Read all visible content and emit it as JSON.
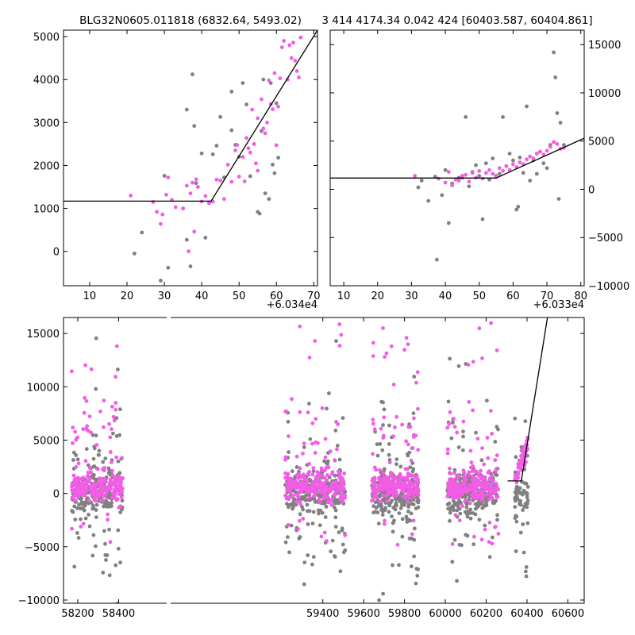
{
  "colors": {
    "pink": "#f25ce6",
    "gray": "#808080",
    "line": "#000000"
  },
  "chart_data": [
    {
      "type": "scatter",
      "id": "zoom-left",
      "title": "BLG32N0605.011818 (6832.64, 5493.02)",
      "x_offset_label": "+6.034e4",
      "xlim": [
        3,
        71
      ],
      "ylim": [
        -800,
        5150
      ],
      "xticks": [
        10,
        20,
        30,
        40,
        50,
        60,
        70
      ],
      "yticks": [
        0,
        1000,
        2000,
        3000,
        4000,
        5000
      ],
      "y_axis_side": "left",
      "model_line": [
        [
          3,
          1170
        ],
        [
          42.5,
          1170
        ],
        [
          71,
          5150
        ]
      ],
      "series": [
        {
          "color_key": "gray",
          "points": [
            [
              22,
              -50
            ],
            [
              24,
              440
            ],
            [
              29,
              -680
            ],
            [
              30,
              1760
            ],
            [
              31,
              -380
            ],
            [
              35,
              1000
            ],
            [
              36,
              3300
            ],
            [
              36,
              270
            ],
            [
              37,
              -350
            ],
            [
              37.5,
              4120
            ],
            [
              38,
              2920
            ],
            [
              38.5,
              1590
            ],
            [
              40,
              2280
            ],
            [
              41,
              320
            ],
            [
              42,
              1140
            ],
            [
              43,
              2260
            ],
            [
              44,
              2460
            ],
            [
              45,
              3130
            ],
            [
              46,
              1720
            ],
            [
              48,
              2820
            ],
            [
              48,
              3720
            ],
            [
              49,
              2480
            ],
            [
              50,
              2200
            ],
            [
              51,
              3920
            ],
            [
              52,
              3420
            ],
            [
              53,
              1750
            ],
            [
              55,
              920
            ],
            [
              55.5,
              880
            ],
            [
              56,
              2800
            ],
            [
              56.5,
              4000
            ],
            [
              57,
              1350
            ],
            [
              58,
              1220
            ],
            [
              58.5,
              3920
            ],
            [
              59,
              2020
            ],
            [
              59.5,
              1820
            ],
            [
              60,
              3450
            ],
            [
              60.5,
              2180
            ]
          ]
        },
        {
          "color_key": "pink",
          "points": [
            [
              21,
              1300
            ],
            [
              27,
              1150
            ],
            [
              28,
              920
            ],
            [
              29,
              640
            ],
            [
              29.5,
              860
            ],
            [
              30.5,
              1320
            ],
            [
              31,
              1720
            ],
            [
              32,
              1200
            ],
            [
              33,
              1030
            ],
            [
              35,
              1000
            ],
            [
              36,
              1530
            ],
            [
              36.5,
              0
            ],
            [
              37,
              1350
            ],
            [
              37.5,
              1600
            ],
            [
              38,
              460
            ],
            [
              38.5,
              1680
            ],
            [
              39,
              1500
            ],
            [
              40,
              1160
            ],
            [
              41,
              1290
            ],
            [
              42,
              1120
            ],
            [
              43,
              1160
            ],
            [
              44,
              1670
            ],
            [
              45,
              1650
            ],
            [
              46,
              1220
            ],
            [
              47,
              2020
            ],
            [
              48,
              1620
            ],
            [
              49,
              2350
            ],
            [
              49.5,
              2480
            ],
            [
              50,
              1740
            ],
            [
              51,
              2200
            ],
            [
              51.5,
              1630
            ],
            [
              52,
              2640
            ],
            [
              52.5,
              2400
            ],
            [
              53,
              2300
            ],
            [
              53.5,
              3300
            ],
            [
              54,
              2500
            ],
            [
              54.5,
              2050
            ],
            [
              55,
              1880
            ],
            [
              55,
              3100
            ],
            [
              56,
              3540
            ],
            [
              56.5,
              2860
            ],
            [
              57,
              2750
            ],
            [
              57.5,
              3000
            ],
            [
              58,
              3980
            ],
            [
              58.5,
              3430
            ],
            [
              59,
              3310
            ],
            [
              59.5,
              4150
            ],
            [
              60,
              2470
            ],
            [
              60.5,
              3370
            ],
            [
              61,
              4030
            ],
            [
              61.5,
              4750
            ],
            [
              62,
              4900
            ],
            [
              63,
              4000
            ],
            [
              63.5,
              4800
            ],
            [
              64,
              4500
            ],
            [
              64.5,
              4860
            ],
            [
              65,
              4440
            ],
            [
              65.5,
              4200
            ],
            [
              66,
              4050
            ],
            [
              66.5,
              4980
            ]
          ]
        }
      ]
    },
    {
      "type": "scatter",
      "id": "zoom-right",
      "title": "3 414 4174.34 0.042 424 [60403.587, 60404.861]",
      "x_offset_label": "+6.033e4",
      "xlim": [
        6,
        81
      ],
      "ylim": [
        -10000,
        16500
      ],
      "xticks": [
        10,
        20,
        30,
        40,
        50,
        60,
        70,
        80
      ],
      "yticks": [
        -10000,
        -5000,
        0,
        5000,
        10000,
        15000
      ],
      "y_axis_side": "right",
      "model_line": [
        [
          6,
          1170
        ],
        [
          55,
          1170
        ],
        [
          81,
          5300
        ]
      ],
      "series": [
        {
          "color_key": "gray",
          "points": [
            [
              32,
              200
            ],
            [
              33,
              900
            ],
            [
              35,
              -1200
            ],
            [
              37,
              1300
            ],
            [
              37.5,
              -7300
            ],
            [
              39,
              -600
            ],
            [
              40,
              2000
            ],
            [
              41,
              -3500
            ],
            [
              42,
              600
            ],
            [
              44,
              1200
            ],
            [
              45,
              1200
            ],
            [
              46,
              7500
            ],
            [
              47,
              300
            ],
            [
              48,
              1800
            ],
            [
              49,
              2500
            ],
            [
              50,
              1400
            ],
            [
              51,
              -3100
            ],
            [
              52,
              2700
            ],
            [
              53,
              1000
            ],
            [
              54,
              3200
            ],
            [
              55,
              1400
            ],
            [
              56,
              1600
            ],
            [
              57,
              7500
            ],
            [
              58,
              2400
            ],
            [
              59,
              3700
            ],
            [
              60,
              3000
            ],
            [
              61,
              -2100
            ],
            [
              61.5,
              -1800
            ],
            [
              62,
              3300
            ],
            [
              63,
              1700
            ],
            [
              64,
              8600
            ],
            [
              65,
              900
            ],
            [
              66,
              3000
            ],
            [
              67,
              1600
            ],
            [
              68,
              3900
            ],
            [
              69,
              2700
            ],
            [
              70,
              2200
            ],
            [
              71,
              4600
            ],
            [
              72,
              14200
            ],
            [
              72.5,
              11600
            ],
            [
              73,
              7900
            ],
            [
              73.5,
              -1000
            ],
            [
              74,
              6900
            ],
            [
              75,
              4600
            ]
          ]
        },
        {
          "color_key": "pink",
          "points": [
            [
              31,
              1400
            ],
            [
              38,
              1100
            ],
            [
              40,
              700
            ],
            [
              41,
              1800
            ],
            [
              42,
              400
            ],
            [
              43,
              1000
            ],
            [
              44,
              900
            ],
            [
              45,
              1400
            ],
            [
              46,
              1500
            ],
            [
              47,
              800
            ],
            [
              48,
              1700
            ],
            [
              49,
              1200
            ],
            [
              50,
              1900
            ],
            [
              51,
              1100
            ],
            [
              52,
              1700
            ],
            [
              53,
              2000
            ],
            [
              54,
              1600
            ],
            [
              55,
              1300
            ],
            [
              56,
              2200
            ],
            [
              57,
              1900
            ],
            [
              58,
              2400
            ],
            [
              59,
              2000
            ],
            [
              60,
              2600
            ],
            [
              61,
              2300
            ],
            [
              62,
              2800
            ],
            [
              63,
              2600
            ],
            [
              64,
              3100
            ],
            [
              65,
              3400
            ],
            [
              66,
              3200
            ],
            [
              67,
              3700
            ],
            [
              68,
              3900
            ],
            [
              69,
              3600
            ],
            [
              70,
              4000
            ],
            [
              71,
              4400
            ],
            [
              72,
              4900
            ],
            [
              73,
              4700
            ],
            [
              74,
              4200
            ],
            [
              75,
              4300
            ]
          ]
        }
      ]
    },
    {
      "type": "scatter",
      "id": "full-lightcurve",
      "title": "",
      "xlim": [
        58130,
        60680
      ],
      "ylim": [
        -10300,
        16500
      ],
      "xticks": [
        58200,
        58400,
        59400,
        59600,
        59800,
        60000,
        60200,
        60400,
        60600
      ],
      "yticks": [
        -10000,
        -5000,
        0,
        5000,
        10000,
        15000
      ],
      "y_axis_side": "left",
      "break_label": "broken x-axis between 58440 and 59210",
      "model_line": [
        [
          60305,
          1170
        ],
        [
          60372,
          1170
        ],
        [
          60500,
          16500
        ]
      ],
      "seasons": [
        {
          "x_range": [
            58170,
            58420
          ],
          "n_pink": 260,
          "n_gray": 240
        },
        {
          "x_range": [
            59215,
            59510
          ],
          "n_pink": 260,
          "n_gray": 260
        },
        {
          "x_range": [
            59640,
            59870
          ],
          "n_pink": 240,
          "n_gray": 260
        },
        {
          "x_range": [
            60010,
            60260
          ],
          "n_pink": 260,
          "n_gray": 260
        },
        {
          "x_range": [
            60340,
            60405
          ],
          "n_pink": 50,
          "n_gray": 70
        }
      ]
    }
  ]
}
